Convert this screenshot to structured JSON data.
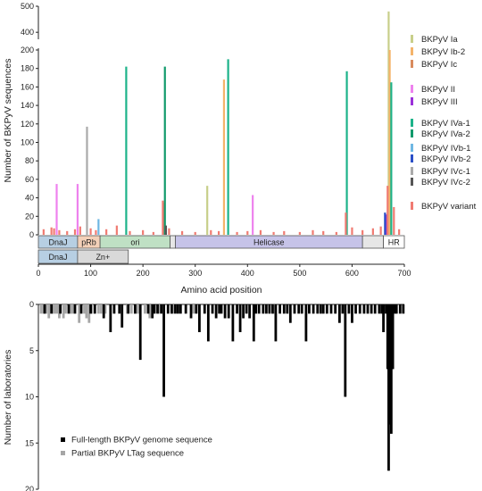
{
  "chart_data": [
    {
      "type": "bar",
      "ylabel": "Number of BKPyV sequences",
      "xlabel": "Amino acid position",
      "xlim": [
        0,
        700
      ],
      "x_ticks": [
        0,
        100,
        200,
        300,
        400,
        500,
        600,
        700
      ],
      "y_ticks_lower": [
        0,
        20,
        40,
        60,
        80,
        100,
        120,
        140,
        160,
        180,
        200
      ],
      "y_ticks_upper": [
        400,
        500
      ],
      "ylim": [
        0,
        500
      ],
      "y_axis_break": [
        200,
        380
      ],
      "legend_position": "right",
      "series": [
        {
          "name": "BKPyV Ia",
          "color": "#c8cf8a",
          "points": [
            [
              323,
              53
            ],
            [
              670,
              480
            ]
          ]
        },
        {
          "name": "BKPyV Ib-2",
          "color": "#f4b36a",
          "points": [
            [
              355,
              168
            ],
            [
              672,
              200
            ]
          ]
        },
        {
          "name": "BKPyV Ic",
          "color": "#d98b5e",
          "points": [
            [
              240,
              35
            ]
          ]
        },
        {
          "name": "BKPyV II",
          "color": "#ee82ee",
          "points": [
            [
              35,
              55
            ],
            [
              75,
              55
            ],
            [
              410,
              43
            ]
          ]
        },
        {
          "name": "BKPyV III",
          "color": "#9b30d9",
          "points": [
            [
              665,
              22
            ]
          ]
        },
        {
          "name": "BKPyV IVa-1",
          "color": "#1db38a",
          "points": [
            [
              168,
              182
            ],
            [
              363,
              190
            ],
            [
              590,
              177
            ],
            [
              675,
              165
            ]
          ]
        },
        {
          "name": "BKPyV IVa-2",
          "color": "#109a6c",
          "points": [
            [
              242,
              182
            ]
          ]
        },
        {
          "name": "BKPyV IVb-1",
          "color": "#6fb7e3",
          "points": [
            [
              115,
              17
            ]
          ]
        },
        {
          "name": "BKPyV IVb-2",
          "color": "#2b4fc7",
          "points": [
            [
              663,
              24
            ]
          ]
        },
        {
          "name": "BKPyV IVc-1",
          "color": "#aaaaaa",
          "points": [
            [
              93,
              117
            ]
          ]
        },
        {
          "name": "BKPyV IVc-2",
          "color": "#555555",
          "points": [
            [
              244,
              10
            ]
          ]
        },
        {
          "name": "BKPyV variant",
          "color": "#f07b72",
          "points": [
            [
              10,
              6
            ],
            [
              25,
              8
            ],
            [
              30,
              7
            ],
            [
              40,
              5
            ],
            [
              55,
              4
            ],
            [
              70,
              6
            ],
            [
              80,
              9
            ],
            [
              100,
              7
            ],
            [
              110,
              5
            ],
            [
              130,
              6
            ],
            [
              150,
              10
            ],
            [
              175,
              4
            ],
            [
              200,
              5
            ],
            [
              220,
              3
            ],
            [
              238,
              37
            ],
            [
              250,
              7
            ],
            [
              275,
              4
            ],
            [
              300,
              3
            ],
            [
              330,
              5
            ],
            [
              345,
              4
            ],
            [
              380,
              3
            ],
            [
              400,
              4
            ],
            [
              425,
              5
            ],
            [
              450,
              3
            ],
            [
              470,
              4
            ],
            [
              500,
              3
            ],
            [
              525,
              5
            ],
            [
              545,
              4
            ],
            [
              570,
              3
            ],
            [
              588,
              24
            ],
            [
              600,
              8
            ],
            [
              620,
              5
            ],
            [
              640,
              7
            ],
            [
              655,
              9
            ],
            [
              668,
              53
            ],
            [
              680,
              30
            ],
            [
              690,
              6
            ]
          ]
        }
      ],
      "legend": [
        "BKPyV Ia",
        "BKPyV Ib-2",
        "BKPyV Ic",
        "BKPyV II",
        "BKPyV III",
        "BKPyV IVa-1",
        "BKPyV IVa-2",
        "BKPyV IVb-1",
        "BKPyV IVb-2",
        "BKPyV IVc-1",
        "BKPyV IVc-2",
        "BKPyV variant"
      ],
      "domains_row1": [
        {
          "label": "DnaJ",
          "start": 0,
          "end": 75,
          "color": "#b7cfe3"
        },
        {
          "label": "pRb",
          "start": 75,
          "end": 118,
          "color": "#f3d0b8"
        },
        {
          "label": "ori",
          "start": 118,
          "end": 252,
          "color": "#bfe0c4"
        },
        {
          "label": "",
          "start": 252,
          "end": 262,
          "color": "#e6e6e6"
        },
        {
          "label": "Helicase",
          "start": 262,
          "end": 620,
          "color": "#c6c3e8"
        },
        {
          "label": "",
          "start": 620,
          "end": 660,
          "color": "#e6e6e6"
        },
        {
          "label": "HR",
          "start": 660,
          "end": 700,
          "color": "#ffffff"
        }
      ],
      "domains_row2": [
        {
          "label": "DnaJ",
          "start": 0,
          "end": 75,
          "color": "#b7cfe3"
        },
        {
          "label": "Zn+",
          "start": 75,
          "end": 172,
          "color": "#d9d9d9"
        }
      ]
    },
    {
      "type": "bar",
      "ylabel": "Number of laboratories",
      "ylim": [
        0,
        20
      ],
      "y_ticks": [
        0,
        5,
        10,
        15,
        20
      ],
      "orientation": "downward",
      "legend_position": "bottom-center",
      "series": [
        {
          "name": "Full-length BKPyV genome sequence",
          "color": "#000000",
          "points": [
            [
              12,
              1
            ],
            [
              25,
              1
            ],
            [
              42,
              1
            ],
            [
              58,
              1
            ],
            [
              70,
              1
            ],
            [
              82,
              1
            ],
            [
              100,
              1
            ],
            [
              108,
              1
            ],
            [
              125,
              1.5
            ],
            [
              138,
              3
            ],
            [
              145,
              1
            ],
            [
              155,
              1
            ],
            [
              160,
              2.5
            ],
            [
              172,
              1
            ],
            [
              185,
              1
            ],
            [
              195,
              6
            ],
            [
              210,
              1
            ],
            [
              218,
              1.5
            ],
            [
              222,
              1
            ],
            [
              228,
              1
            ],
            [
              235,
              1
            ],
            [
              240,
              10
            ],
            [
              248,
              1
            ],
            [
              255,
              1
            ],
            [
              262,
              1
            ],
            [
              267,
              1
            ],
            [
              272,
              1
            ],
            [
              282,
              1
            ],
            [
              292,
              1.5
            ],
            [
              302,
              1
            ],
            [
              308,
              3
            ],
            [
              318,
              1
            ],
            [
              325,
              4
            ],
            [
              333,
              1
            ],
            [
              340,
              1.5
            ],
            [
              346,
              1
            ],
            [
              350,
              1
            ],
            [
              357,
              1.5
            ],
            [
              364,
              1.5
            ],
            [
              372,
              4
            ],
            [
              380,
              1
            ],
            [
              386,
              3
            ],
            [
              392,
              1.5
            ],
            [
              398,
              1
            ],
            [
              404,
              1.5
            ],
            [
              412,
              4
            ],
            [
              416,
              1
            ],
            [
              422,
              1
            ],
            [
              430,
              1
            ],
            [
              436,
              1
            ],
            [
              442,
              1
            ],
            [
              448,
              1
            ],
            [
              454,
              4
            ],
            [
              462,
              1
            ],
            [
              470,
              1
            ],
            [
              476,
              1
            ],
            [
              482,
              2
            ],
            [
              490,
              1
            ],
            [
              498,
              1
            ],
            [
              504,
              1
            ],
            [
              512,
              4
            ],
            [
              518,
              1
            ],
            [
              526,
              1
            ],
            [
              534,
              1
            ],
            [
              540,
              1
            ],
            [
              545,
              1
            ],
            [
              552,
              1
            ],
            [
              560,
              1
            ],
            [
              568,
              1
            ],
            [
              576,
              2
            ],
            [
              582,
              1
            ],
            [
              587,
              10
            ],
            [
              594,
              1
            ],
            [
              600,
              2
            ],
            [
              607,
              1
            ],
            [
              615,
              1
            ],
            [
              623,
              1
            ],
            [
              630,
              1
            ],
            [
              637,
              1
            ],
            [
              644,
              1
            ],
            [
              652,
              1
            ],
            [
              657,
              1
            ],
            [
              660,
              3
            ],
            [
              665,
              1
            ],
            [
              668,
              7
            ],
            [
              670,
              18
            ],
            [
              672,
              13
            ],
            [
              675,
              14
            ],
            [
              678,
              7
            ],
            [
              682,
              1
            ],
            [
              685,
              1
            ],
            [
              692,
              1
            ],
            [
              698,
              1
            ]
          ]
        },
        {
          "name": "Partial BKPyV LTag sequence",
          "color": "#a6a6a6",
          "points": [
            [
              5,
              1
            ],
            [
              10,
              1
            ],
            [
              15,
              1
            ],
            [
              20,
              1.5
            ],
            [
              28,
              1
            ],
            [
              32,
              1
            ],
            [
              36,
              1
            ],
            [
              40,
              1.5
            ],
            [
              48,
              1.5
            ],
            [
              52,
              1
            ],
            [
              62,
              1
            ],
            [
              65,
              1
            ],
            [
              78,
              2
            ],
            [
              88,
              1
            ],
            [
              92,
              1.5
            ],
            [
              97,
              2
            ],
            [
              102,
              1
            ],
            [
              115,
              1
            ],
            [
              120,
              1
            ],
            [
              128,
              1
            ],
            [
              170,
              1
            ],
            [
              178,
              1
            ],
            [
              186,
              1
            ],
            [
              190,
              1
            ],
            [
              204,
              1
            ],
            [
              213,
              1.5
            ],
            [
              230,
              1
            ],
            [
              258,
              1
            ],
            [
              297,
              1
            ],
            [
              450,
              1
            ]
          ]
        }
      ]
    }
  ]
}
